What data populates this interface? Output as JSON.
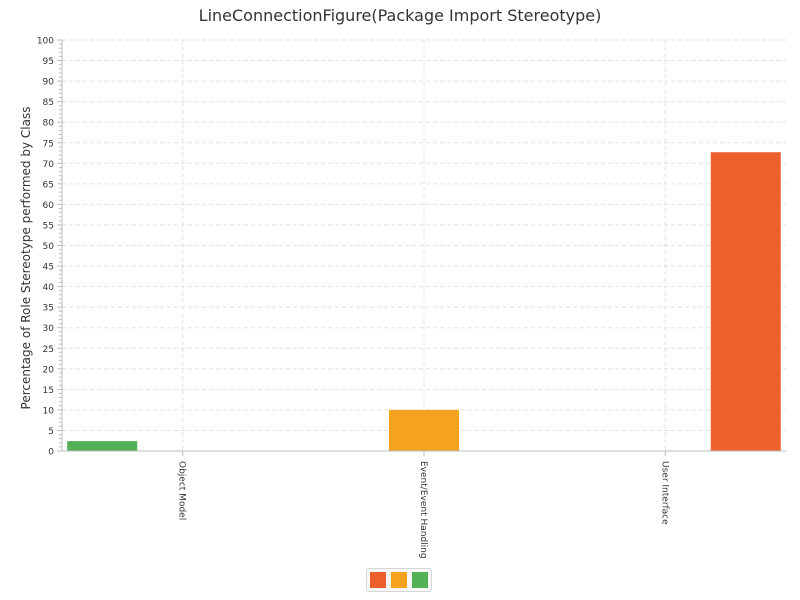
{
  "chart_data": {
    "type": "bar",
    "title": "LineConnectionFigure(Package Import Stereotype)",
    "xlabel": "",
    "ylabel": "Percentage of Role Stereotype performed by Class",
    "ylim": [
      0,
      100
    ],
    "y_tick_step": 5,
    "grid": true,
    "legend_position": "bottom",
    "categories": [
      "Object Model",
      "Event/Event Handling",
      "User Interface"
    ],
    "series": [
      {
        "color": "#ee5f2e",
        "values": [
          0,
          0,
          72.7
        ]
      },
      {
        "color": "#f5a31e",
        "values": [
          0,
          10,
          0
        ]
      },
      {
        "color": "#53b054",
        "values": [
          2.4,
          0,
          0
        ]
      }
    ]
  }
}
